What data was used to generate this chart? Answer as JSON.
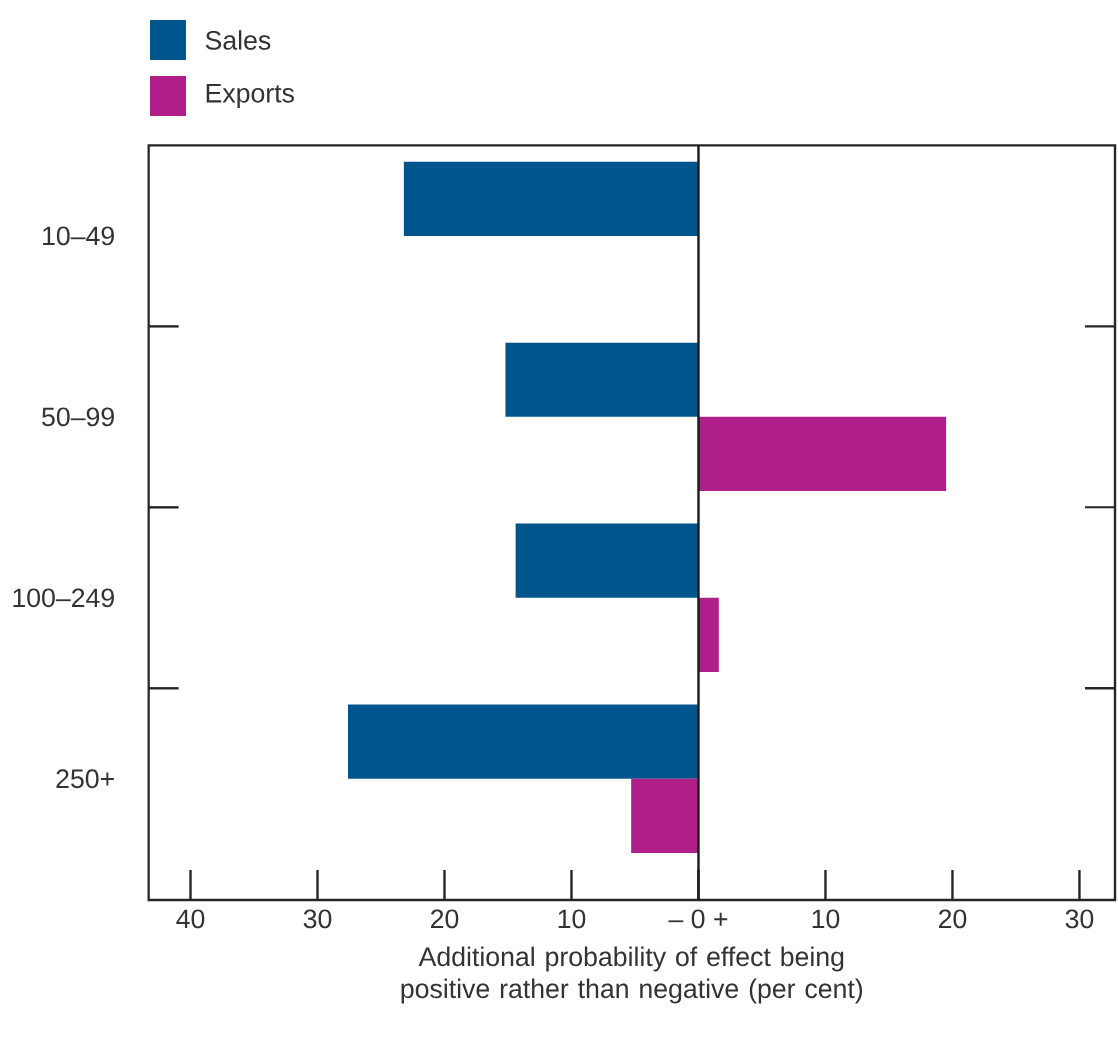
{
  "chart_data": {
    "type": "bar",
    "orientation": "horizontal",
    "categories": [
      "10–49",
      "50–99",
      "100–249",
      "250+"
    ],
    "series": [
      {
        "name": "Sales",
        "color": "#00568c",
        "values": [
          -23.2,
          -15.2,
          -14.4,
          -27.6
        ]
      },
      {
        "name": "Exports",
        "color": "#b01e8a",
        "values": [
          0,
          19.5,
          1.6,
          -5.3
        ]
      }
    ],
    "xlabel": "Additional probability of effect being positive rather than negative (per cent)",
    "xlim": [
      -43.3,
      32.8
    ],
    "xticks": [
      {
        "value": -40,
        "label": "40"
      },
      {
        "value": -30,
        "label": "30"
      },
      {
        "value": -20,
        "label": "20"
      },
      {
        "value": -10,
        "label": "10"
      },
      {
        "value": 0,
        "label": "– 0 +"
      },
      10,
      20,
      30
    ],
    "ref_lines": [
      {
        "axis": "x",
        "value": 0,
        "color": "#1a1a1a"
      }
    ],
    "legend": "top left"
  }
}
